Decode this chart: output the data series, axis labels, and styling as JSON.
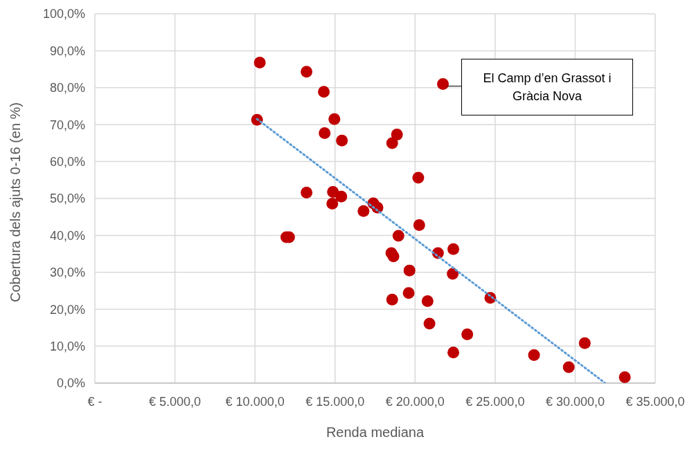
{
  "chart_data": {
    "type": "scatter",
    "xlabel": "Renda mediana",
    "ylabel": "Cobertura dels ajuts 0-16 (en %)",
    "xlim": [
      0,
      35000
    ],
    "xticks": [
      {
        "value": 0,
        "label": "€ -"
      },
      {
        "value": 5000,
        "label": "€ 5.000,0"
      },
      {
        "value": 10000,
        "label": "€ 10.000,0"
      },
      {
        "value": 15000,
        "label": "€ 15.000,0"
      },
      {
        "value": 20000,
        "label": "€ 20.000,0"
      },
      {
        "value": 25000,
        "label": "€ 25.000,0"
      },
      {
        "value": 30000,
        "label": "€ 30.000,0"
      },
      {
        "value": 35000,
        "label": "€ 35.000,0"
      }
    ],
    "ylim": [
      0,
      100
    ],
    "yticks": [
      {
        "value": 0,
        "label": "0,0%"
      },
      {
        "value": 10,
        "label": "10,0%"
      },
      {
        "value": 20,
        "label": "20,0%"
      },
      {
        "value": 30,
        "label": "30,0%"
      },
      {
        "value": 40,
        "label": "40,0%"
      },
      {
        "value": 50,
        "label": "50,0%"
      },
      {
        "value": 60,
        "label": "60,0%"
      },
      {
        "value": 70,
        "label": "70,0%"
      },
      {
        "value": 80,
        "label": "80,0%"
      },
      {
        "value": 90,
        "label": "90,0%"
      },
      {
        "value": 100,
        "label": "100,0%"
      }
    ],
    "grid": true,
    "legend": false,
    "marker": "circle",
    "series": [
      {
        "type": "scatter",
        "color": "#c00000",
        "x": [
          10300,
          10130,
          13220,
          14300,
          14960,
          14350,
          15430,
          21740,
          18570,
          18870,
          20200,
          13220,
          14870,
          15390,
          14830,
          16780,
          17390,
          17650,
          11960,
          12130,
          18960,
          20260,
          18520,
          18650,
          21430,
          22390,
          19650,
          22350,
          19600,
          18570,
          20780,
          20900,
          23260,
          22390,
          24700,
          27430,
          29600,
          30600,
          33100
        ],
        "values": [
          86.8,
          71.3,
          84.3,
          78.9,
          71.5,
          67.7,
          65.7,
          81.0,
          65.0,
          67.3,
          55.6,
          51.6,
          51.8,
          50.5,
          48.6,
          46.6,
          48.7,
          47.5,
          39.5,
          39.5,
          39.9,
          42.8,
          35.2,
          34.3,
          35.2,
          36.3,
          30.5,
          29.6,
          24.4,
          22.6,
          22.2,
          16.1,
          13.2,
          8.3,
          23.1,
          7.6,
          4.3,
          10.8,
          1.6
        ]
      },
      {
        "type": "line",
        "color": "#5b9bd5",
        "line_style": "dotted",
        "marker": "none",
        "x": [
          10130,
          31870
        ],
        "values": [
          71.5,
          0
        ]
      }
    ],
    "annotations": [
      "El Camp d’en Grassot i Gràcia Nova"
    ]
  }
}
